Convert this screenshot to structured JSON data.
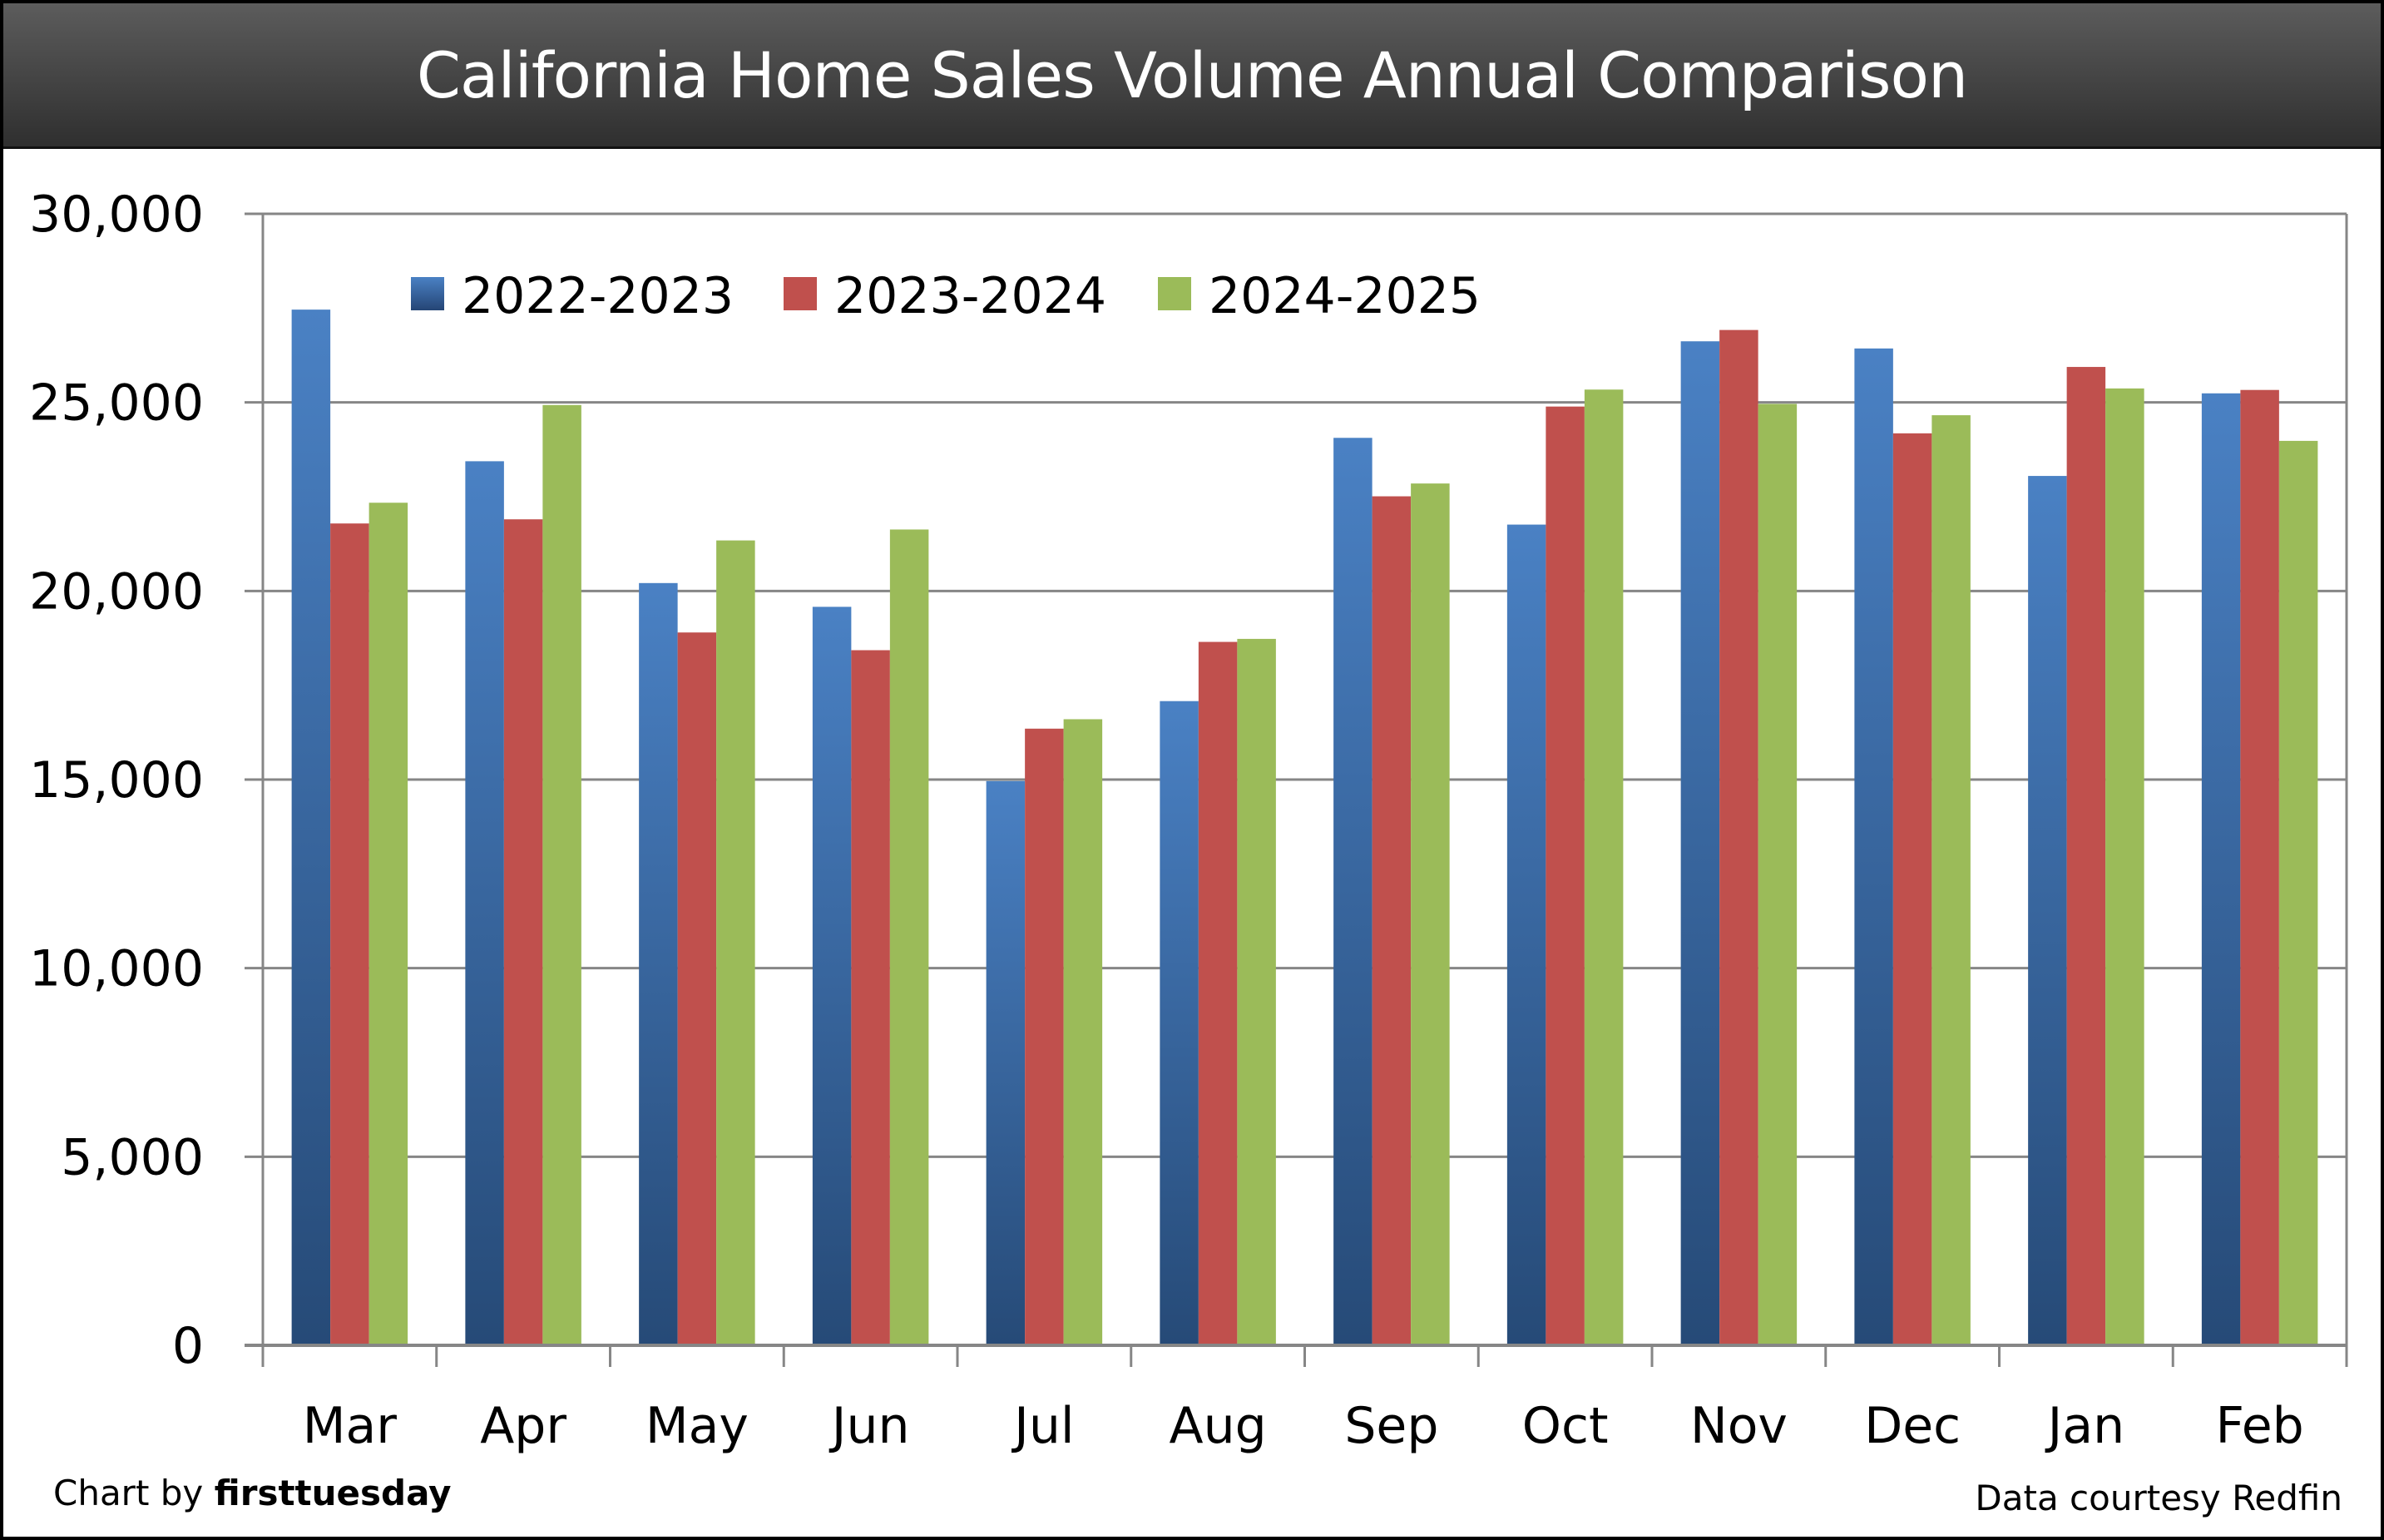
{
  "chart_data": {
    "type": "bar",
    "title": "California Home Sales Volume Annual Comparison",
    "xlabel": "",
    "ylabel": "",
    "ylim": [
      0,
      30000
    ],
    "yticks": [
      0,
      5000,
      10000,
      15000,
      20000,
      25000,
      30000
    ],
    "ytick_labels": [
      "0",
      "5,000",
      "10,000",
      "15,000",
      "20,000",
      "25,000",
      "30,000"
    ],
    "grid": true,
    "legend_position": "top-left",
    "categories": [
      "Mar",
      "Apr",
      "May",
      "Jun",
      "Jul",
      "Aug",
      "Sep",
      "Oct",
      "Nov",
      "Dec",
      "Jan",
      "Feb"
    ],
    "series": [
      {
        "name": "2022-2023",
        "color": "#4A7EBB",
        "color_dark": "#254A78",
        "values": [
          27460,
          23440,
          20210,
          19580,
          14960,
          17080,
          24060,
          21760,
          26620,
          26430,
          23050,
          25240
        ]
      },
      {
        "name": "2023-2024",
        "color": "#C0504D",
        "values": [
          21790,
          21900,
          18900,
          18430,
          16350,
          18650,
          22510,
          24890,
          26920,
          24180,
          25940,
          25330
        ]
      },
      {
        "name": "2024-2025",
        "color": "#9BBB59",
        "values": [
          22340,
          24930,
          21340,
          21630,
          16600,
          18730,
          22850,
          25340,
          24960,
          24660,
          25370,
          23980
        ]
      }
    ]
  },
  "footer": {
    "credit_prefix": "Chart by ",
    "credit_brand": "firsttuesday",
    "source": "Data courtesy Redfin"
  }
}
